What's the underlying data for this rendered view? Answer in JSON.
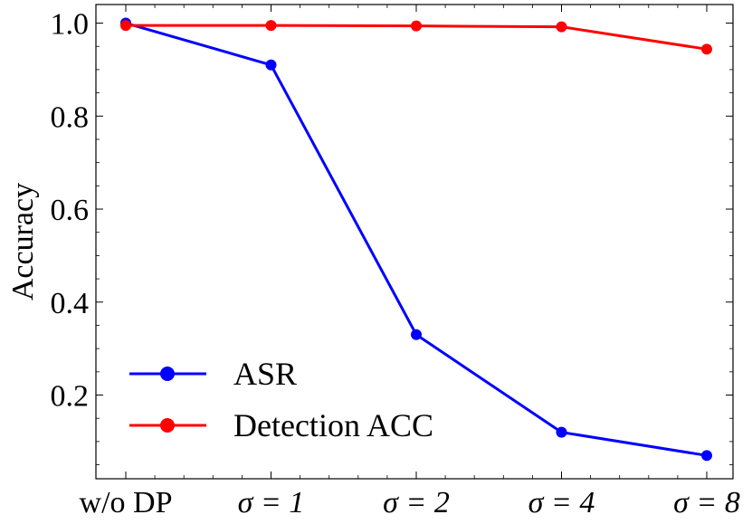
{
  "chart_data": {
    "type": "line",
    "title": "",
    "xlabel": "",
    "ylabel": "Accuracy",
    "categories": [
      "w/o DP",
      "σ = 1",
      "σ = 2",
      "σ = 4",
      "σ = 8"
    ],
    "ylim": [
      0.02,
      1.04
    ],
    "yticks": [
      0.2,
      0.4,
      0.6,
      0.8,
      1.0
    ],
    "ytick_labels": [
      "0.2",
      "0.4",
      "0.6",
      "0.8",
      "1.0"
    ],
    "grid": false,
    "legend_position": "lower-left",
    "series": [
      {
        "name": "ASR",
        "color": "#0000ff",
        "values": [
          1.0,
          0.91,
          0.33,
          0.12,
          0.07
        ]
      },
      {
        "name": "Detection ACC",
        "color": "#ff0000",
        "values": [
          0.995,
          0.995,
          0.994,
          0.992,
          0.944
        ]
      }
    ]
  }
}
